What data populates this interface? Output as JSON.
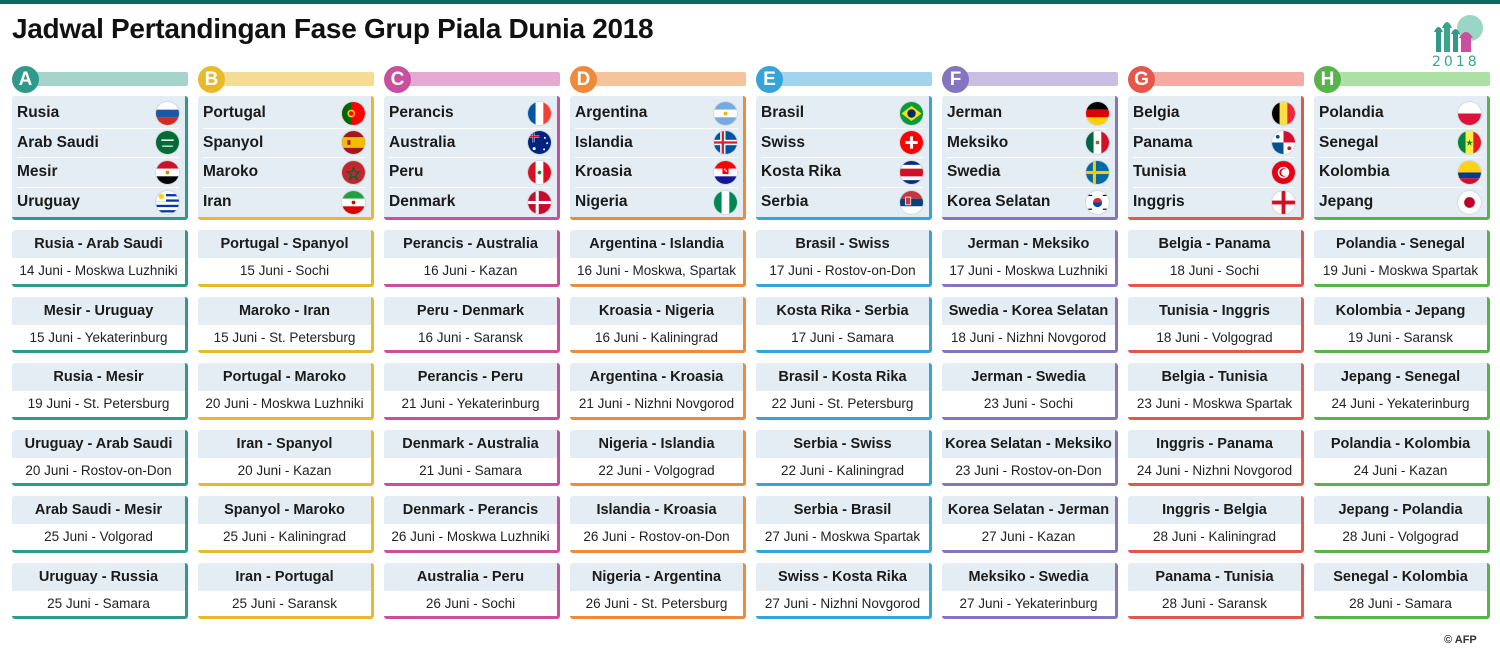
{
  "title": "Jadwal Pertandingan Fase Grup Piala Dunia 2018",
  "logo_year": "2018",
  "credit": "© AFP",
  "groups": [
    {
      "letter": "A",
      "color": "#2f9a8a",
      "bar": "#a6d4cc",
      "teams": [
        {
          "name": "Rusia",
          "flag": "russia-flag-icon"
        },
        {
          "name": "Arab Saudi",
          "flag": "saudi-arabia-flag-icon"
        },
        {
          "name": "Mesir",
          "flag": "egypt-flag-icon"
        },
        {
          "name": "Uruguay",
          "flag": "uruguay-flag-icon"
        }
      ],
      "matches": [
        {
          "teams": "Rusia - Arab Saudi",
          "info": "14 Juni - Moskwa Luzhniki"
        },
        {
          "teams": "Mesir - Uruguay",
          "info": "15 Juni - Yekaterinburg"
        },
        {
          "teams": "Rusia - Mesir",
          "info": "19 Juni - St. Petersburg"
        },
        {
          "teams": "Uruguay - Arab Saudi",
          "info": "20 Juni - Rostov-on-Don"
        },
        {
          "teams": "Arab Saudi - Mesir",
          "info": "25 Juni - Volgorad"
        },
        {
          "teams": "Uruguay - Russia",
          "info": "25 Juni - Samara"
        }
      ]
    },
    {
      "letter": "B",
      "color": "#e9b92c",
      "bar": "#f4dc95",
      "teams": [
        {
          "name": "Portugal",
          "flag": "portugal-flag-icon"
        },
        {
          "name": "Spanyol",
          "flag": "spain-flag-icon"
        },
        {
          "name": "Maroko",
          "flag": "morocco-flag-icon"
        },
        {
          "name": "Iran",
          "flag": "iran-flag-icon"
        }
      ],
      "matches": [
        {
          "teams": "Portugal - Spanyol",
          "info": "15 Juni - Sochi"
        },
        {
          "teams": "Maroko - Iran",
          "info": "15 Juni - St. Petersburg"
        },
        {
          "teams": "Portugal - Maroko",
          "info": "20 Juni - Moskwa Luzhniki"
        },
        {
          "teams": "Iran - Spanyol",
          "info": "20 Juni - Kazan"
        },
        {
          "teams": "Spanyol - Maroko",
          "info": "25 Juni - Kaliningrad"
        },
        {
          "teams": "Iran - Portugal",
          "info": "25 Juni - Saransk"
        }
      ]
    },
    {
      "letter": "C",
      "color": "#c94f9f",
      "bar": "#e6a9d1",
      "teams": [
        {
          "name": "Perancis",
          "flag": "france-flag-icon"
        },
        {
          "name": "Australia",
          "flag": "australia-flag-icon"
        },
        {
          "name": "Peru",
          "flag": "peru-flag-icon"
        },
        {
          "name": "Denmark",
          "flag": "denmark-flag-icon"
        }
      ],
      "matches": [
        {
          "teams": "Perancis - Australia",
          "info": "16 Juni - Kazan"
        },
        {
          "teams": "Peru - Denmark",
          "info": "16 Juni - Saransk"
        },
        {
          "teams": "Perancis - Peru",
          "info": "21 Juni - Yekaterinburg"
        },
        {
          "teams": "Denmark - Australia",
          "info": "21 Juni - Samara"
        },
        {
          "teams": "Denmark - Perancis",
          "info": "26 Juni - Moskwa Luzhniki"
        },
        {
          "teams": "Australia - Peru",
          "info": "26 Juni - Sochi"
        }
      ]
    },
    {
      "letter": "D",
      "color": "#ee8a3c",
      "bar": "#f6c49a",
      "teams": [
        {
          "name": "Argentina",
          "flag": "argentina-flag-icon"
        },
        {
          "name": "Islandia",
          "flag": "iceland-flag-icon"
        },
        {
          "name": "Kroasia",
          "flag": "croatia-flag-icon"
        },
        {
          "name": "Nigeria",
          "flag": "nigeria-flag-icon"
        }
      ],
      "matches": [
        {
          "teams": "Argentina - Islandia",
          "info": "16 Juni - Moskwa, Spartak"
        },
        {
          "teams": "Kroasia - Nigeria",
          "info": "16 Juni - Kaliningrad"
        },
        {
          "teams": "Argentina - Kroasia",
          "info": "21 Juni - Nizhni Novgorod"
        },
        {
          "teams": "Nigeria - Islandia",
          "info": "22 Juni - Volgograd"
        },
        {
          "teams": "Islandia - Kroasia",
          "info": "26 Juni - Rostov-on-Don"
        },
        {
          "teams": "Nigeria - Argentina",
          "info": "26 Juni - St. Petersburg"
        }
      ]
    },
    {
      "letter": "E",
      "color": "#35a4d8",
      "bar": "#a3d4ee",
      "teams": [
        {
          "name": "Brasil",
          "flag": "brazil-flag-icon"
        },
        {
          "name": "Swiss",
          "flag": "switzerland-flag-icon"
        },
        {
          "name": "Kosta Rika",
          "flag": "costa-rica-flag-icon"
        },
        {
          "name": "Serbia",
          "flag": "serbia-flag-icon"
        }
      ],
      "matches": [
        {
          "teams": "Brasil - Swiss",
          "info": "17 Juni - Rostov-on-Don"
        },
        {
          "teams": "Kosta Rika - Serbia",
          "info": "17 Juni - Samara"
        },
        {
          "teams": "Brasil - Kosta Rika",
          "info": "22 Juni - St. Petersburg"
        },
        {
          "teams": "Serbia - Swiss",
          "info": "22 Juni - Kaliningrad"
        },
        {
          "teams": "Serbia - Brasil",
          "info": "27 Juni - Moskwa Spartak"
        },
        {
          "teams": "Swiss - Kosta Rika",
          "info": "27 Juni - Nizhni Novgorod"
        }
      ]
    },
    {
      "letter": "F",
      "color": "#8574c1",
      "bar": "#c8bfe2",
      "teams": [
        {
          "name": "Jerman",
          "flag": "germany-flag-icon"
        },
        {
          "name": "Meksiko",
          "flag": "mexico-flag-icon"
        },
        {
          "name": "Swedia",
          "flag": "sweden-flag-icon"
        },
        {
          "name": "Korea Selatan",
          "flag": "south-korea-flag-icon"
        }
      ],
      "matches": [
        {
          "teams": "Jerman - Meksiko",
          "info": "17 Juni - Moskwa Luzhniki"
        },
        {
          "teams": "Swedia - Korea Selatan",
          "info": "18 Juni - Nizhni Novgorod"
        },
        {
          "teams": "Jerman - Swedia",
          "info": "23 Juni - Sochi"
        },
        {
          "teams": "Korea Selatan - Meksiko",
          "info": "23 Juni - Rostov-on-Don"
        },
        {
          "teams": "Korea Selatan - Jerman",
          "info": "27 Juni - Kazan"
        },
        {
          "teams": "Meksiko - Swedia",
          "info": "27 Juni - Yekaterinburg"
        }
      ]
    },
    {
      "letter": "G",
      "color": "#e5574a",
      "bar": "#f3aba3",
      "teams": [
        {
          "name": "Belgia",
          "flag": "belgium-flag-icon"
        },
        {
          "name": "Panama",
          "flag": "panama-flag-icon"
        },
        {
          "name": "Tunisia",
          "flag": "tunisia-flag-icon"
        },
        {
          "name": "Inggris",
          "flag": "england-flag-icon"
        }
      ],
      "matches": [
        {
          "teams": "Belgia - Panama",
          "info": "18 Juni - Sochi"
        },
        {
          "teams": "Tunisia - Inggris",
          "info": "18 Juni - Volgograd"
        },
        {
          "teams": "Belgia - Tunisia",
          "info": "23 Juni - Moskwa Spartak"
        },
        {
          "teams": "Inggris - Panama",
          "info": "24 Juni - Nizhni Novgorod"
        },
        {
          "teams": "Inggris - Belgia",
          "info": "28 Juni - Kaliningrad"
        },
        {
          "teams": "Panama - Tunisia",
          "info": "28 Juni - Saransk"
        }
      ]
    },
    {
      "letter": "H",
      "color": "#58b34c",
      "bar": "#ade0a4",
      "teams": [
        {
          "name": "Polandia",
          "flag": "poland-flag-icon"
        },
        {
          "name": "Senegal",
          "flag": "senegal-flag-icon"
        },
        {
          "name": "Kolombia",
          "flag": "colombia-flag-icon"
        },
        {
          "name": "Jepang",
          "flag": "japan-flag-icon"
        }
      ],
      "matches": [
        {
          "teams": "Polandia - Senegal",
          "info": "19 Juni - Moskwa Spartak"
        },
        {
          "teams": "Kolombia - Jepang",
          "info": "19 Juni - Saransk"
        },
        {
          "teams": "Jepang - Senegal",
          "info": "24 Juni - Yekaterinburg"
        },
        {
          "teams": "Polandia - Kolombia",
          "info": "24 Juni - Kazan"
        },
        {
          "teams": "Jepang - Polandia",
          "info": "28 Juni - Volgograd"
        },
        {
          "teams": "Senegal - Kolombia",
          "info": "28 Juni - Samara"
        }
      ]
    }
  ]
}
